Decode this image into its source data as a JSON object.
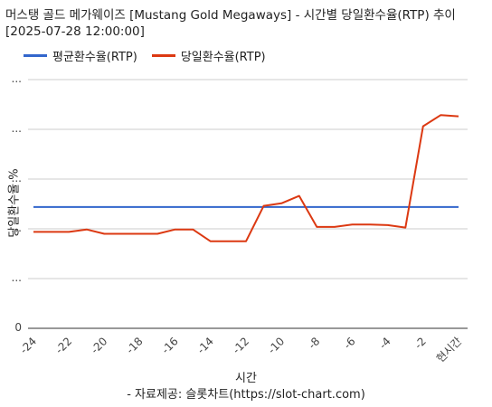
{
  "title": "머스탱 골드 메가웨이즈 [Mustang Gold Megaways] - 시간별 당일환수율(RTP) 추이 [2025-07-28 12:00:00]",
  "source": "- 자료제공: 슬롯차트(https://slot-chart.com)",
  "chart_data": {
    "type": "line",
    "xlabel": "시간",
    "ylabel": "당일환수율 %",
    "x": [
      -24,
      -23,
      -22,
      -21,
      -20,
      -19,
      -18,
      -17,
      -16,
      -15,
      -14,
      -13,
      -12,
      -11,
      -10,
      -9,
      -8,
      -7,
      -6,
      -5,
      -4,
      -3,
      -2,
      -1,
      0
    ],
    "x_tick_labels": [
      "-24",
      "-22",
      "-20",
      "-18",
      "-16",
      "-14",
      "-12",
      "-10",
      "-8",
      "-6",
      "-4",
      "-2",
      "현시간"
    ],
    "x_tick_values": [
      -24,
      -22,
      -20,
      -18,
      -16,
      -14,
      -12,
      -10,
      -8,
      -6,
      -4,
      -2,
      0
    ],
    "y_tick_labels": [
      "0",
      "...",
      "...",
      "...",
      "...",
      "..."
    ],
    "ylim": [
      0,
      400
    ],
    "grid": true,
    "legend_position": "top-left",
    "series": [
      {
        "name": "평균환수율(RTP)",
        "color": "#3366cc",
        "values": [
          195,
          195,
          195,
          195,
          195,
          195,
          195,
          195,
          195,
          195,
          195,
          195,
          195,
          195,
          195,
          195,
          195,
          195,
          195,
          195,
          195,
          195,
          195,
          195,
          195
        ]
      },
      {
        "name": "당일환수율(RTP)",
        "color": "#dc3912",
        "values": [
          155,
          155,
          155,
          159,
          152,
          152,
          152,
          152,
          159,
          159,
          140,
          140,
          140,
          197,
          201,
          213,
          163,
          163,
          167,
          167,
          166,
          162,
          325,
          343,
          341
        ]
      }
    ]
  }
}
